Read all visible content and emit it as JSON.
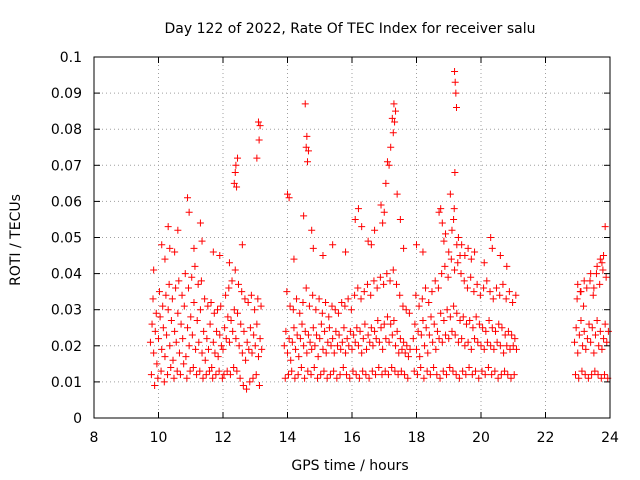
{
  "chart_data": {
    "type": "scatter",
    "title": "Day 122 of 2022, Rate Of TEC Index for receiver salu",
    "xlabel": "GPS time / hours",
    "ylabel": "ROTI / TECUs",
    "xlim": [
      8,
      24
    ],
    "ylim": [
      0,
      0.1
    ],
    "x_ticks": [
      "8",
      "10",
      "12",
      "14",
      "16",
      "18",
      "20",
      "22",
      "24"
    ],
    "y_ticks": [
      "0",
      "0.01",
      "0.02",
      "0.03",
      "0.04",
      "0.05",
      "0.06",
      "0.07",
      "0.08",
      "0.09",
      "0.1"
    ],
    "grid": true,
    "marker": "+",
    "color": "#ff0000",
    "series": [
      {
        "x": [
          9.75,
          9.8,
          9.85,
          9.9,
          9.95,
          10.0,
          10.05,
          10.1,
          10.15,
          10.2,
          10.25,
          10.3,
          10.35,
          10.4,
          10.45,
          10.5,
          10.55,
          10.6,
          10.65,
          10.7,
          10.75,
          10.8,
          10.85,
          10.9,
          10.95,
          11.0,
          11.05,
          11.1,
          11.15,
          11.2,
          11.25,
          11.3,
          11.35,
          11.4,
          11.45,
          11.5,
          11.55,
          11.6,
          11.65,
          11.7,
          11.75,
          11.8,
          11.85,
          11.9,
          11.95,
          12.0,
          12.05,
          12.1,
          12.15,
          12.2,
          12.25,
          12.3,
          12.35,
          12.4,
          12.45,
          12.5,
          12.55,
          12.6,
          12.65,
          12.7,
          12.75,
          12.8,
          12.85,
          12.9,
          12.95,
          13.0,
          13.05,
          13.1,
          13.15,
          13.2,
          9.78,
          9.83,
          9.88,
          9.93,
          9.98,
          10.03,
          10.08,
          10.13,
          10.18,
          10.23,
          10.28,
          10.33,
          10.38,
          10.43,
          10.48,
          10.53,
          10.58,
          10.63,
          10.68,
          10.73,
          10.78,
          10.83,
          10.88,
          10.93,
          10.98,
          11.03,
          11.08,
          11.13,
          11.18,
          11.23,
          11.28,
          11.33,
          11.38,
          11.43,
          11.48,
          11.53,
          11.58,
          11.63,
          11.68,
          11.73,
          11.78,
          11.83,
          11.88,
          11.93,
          11.98,
          12.03,
          12.08,
          12.13,
          12.18,
          12.23,
          12.28,
          12.33,
          12.38,
          12.43,
          12.48,
          12.53,
          12.58,
          12.63,
          12.68,
          12.73,
          12.78,
          12.83,
          12.88,
          12.93,
          12.98,
          13.03,
          13.08,
          13.13,
          13.18,
          10.1,
          10.3,
          10.6,
          10.9,
          10.95,
          11.3,
          11.35,
          11.7,
          12.35,
          12.4,
          12.45,
          12.38,
          12.42,
          13.1,
          13.15,
          13.12,
          13.05,
          10.2,
          10.5,
          11.1,
          11.9,
          12.6,
          12.2,
          9.85,
          10.35,
          13.9,
          13.95,
          14.0,
          14.05,
          14.1,
          14.15,
          14.2,
          14.25,
          14.3,
          14.35,
          14.4,
          14.45,
          14.5,
          14.55,
          14.6,
          14.65,
          14.7,
          14.75,
          14.8,
          14.85,
          14.9,
          14.95,
          15.0,
          15.05,
          15.1,
          15.15,
          15.2,
          15.25,
          15.3,
          15.35,
          15.4,
          15.45,
          15.5,
          15.55,
          15.6,
          15.65,
          15.7,
          15.75,
          15.8,
          15.85,
          15.9,
          15.95,
          16.0,
          16.05,
          16.1,
          16.15,
          16.2,
          16.25,
          16.3,
          16.35,
          16.4,
          16.45,
          16.5,
          16.55,
          16.6,
          16.65,
          16.7,
          16.75,
          16.8,
          16.85,
          16.9,
          16.95,
          17.0,
          17.05,
          17.1,
          17.15,
          17.2,
          17.25,
          17.3,
          17.35,
          17.4,
          17.45,
          17.5,
          17.55,
          17.6,
          17.65,
          17.7,
          17.75,
          17.8,
          13.93,
          13.98,
          14.03,
          14.08,
          14.13,
          14.18,
          14.23,
          14.28,
          14.33,
          14.38,
          14.43,
          14.48,
          14.53,
          14.58,
          14.63,
          14.68,
          14.73,
          14.78,
          14.83,
          14.88,
          14.93,
          14.98,
          15.03,
          15.08,
          15.13,
          15.18,
          15.23,
          15.28,
          15.33,
          15.38,
          15.43,
          15.48,
          15.53,
          15.58,
          15.63,
          15.68,
          15.73,
          15.78,
          15.83,
          15.88,
          15.93,
          15.98,
          16.03,
          16.08,
          16.13,
          16.18,
          16.23,
          16.28,
          16.33,
          16.38,
          16.43,
          16.48,
          16.53,
          16.58,
          16.63,
          16.68,
          16.73,
          16.78,
          16.83,
          16.88,
          16.93,
          16.98,
          17.03,
          17.08,
          17.13,
          17.18,
          17.23,
          17.28,
          17.33,
          17.38,
          17.43,
          17.48,
          17.53,
          17.58,
          17.63,
          17.68,
          17.73,
          17.78,
          14.0,
          14.05,
          14.55,
          14.6,
          14.58,
          14.62,
          14.65,
          14.5,
          14.75,
          14.8,
          15.1,
          15.4,
          16.1,
          16.2,
          16.3,
          16.5,
          16.7,
          16.9,
          17.0,
          17.1,
          17.15,
          17.2,
          17.25,
          17.3,
          17.35,
          17.32,
          17.28,
          17.4,
          17.5,
          17.6,
          17.05,
          16.95,
          14.2,
          15.8,
          16.6,
          17.9,
          17.95,
          18.0,
          18.05,
          18.1,
          18.15,
          18.2,
          18.25,
          18.3,
          18.35,
          18.4,
          18.45,
          18.5,
          18.55,
          18.6,
          18.65,
          18.7,
          18.75,
          18.8,
          18.85,
          18.9,
          18.95,
          19.0,
          19.05,
          19.1,
          19.15,
          19.2,
          19.25,
          19.3,
          19.35,
          19.4,
          19.45,
          19.5,
          19.55,
          19.6,
          19.65,
          19.7,
          19.75,
          19.8,
          19.85,
          19.9,
          19.95,
          20.0,
          20.05,
          20.1,
          20.15,
          20.2,
          20.25,
          20.3,
          20.35,
          20.4,
          20.45,
          20.5,
          20.55,
          20.6,
          20.65,
          20.7,
          20.75,
          20.8,
          20.85,
          20.9,
          20.95,
          21.0,
          21.05,
          21.1,
          17.93,
          17.98,
          18.03,
          18.08,
          18.13,
          18.18,
          18.23,
          18.28,
          18.33,
          18.38,
          18.43,
          18.48,
          18.53,
          18.58,
          18.63,
          18.68,
          18.73,
          18.78,
          18.83,
          18.88,
          18.93,
          18.98,
          19.03,
          19.08,
          19.13,
          19.18,
          19.23,
          19.28,
          19.33,
          19.38,
          19.43,
          19.48,
          19.53,
          19.58,
          19.63,
          19.68,
          19.73,
          19.78,
          19.83,
          19.88,
          19.93,
          19.98,
          20.03,
          20.08,
          20.13,
          20.18,
          20.23,
          20.28,
          20.33,
          20.38,
          20.43,
          20.48,
          20.53,
          20.58,
          20.63,
          20.68,
          20.73,
          20.78,
          20.83,
          20.88,
          20.93,
          20.98,
          21.03,
          21.08,
          19.18,
          19.2,
          19.22,
          19.24,
          19.19,
          19.17,
          19.15,
          19.1,
          19.3,
          19.25,
          18.7,
          18.75,
          18.8,
          18.85,
          18.9,
          19.0,
          19.4,
          19.5,
          19.6,
          19.7,
          19.8,
          20.1,
          20.3,
          20.35,
          20.6,
          20.8,
          18.0,
          18.2,
          19.05,
          19.35,
          22.9,
          22.95,
          23.0,
          23.05,
          23.1,
          23.15,
          23.2,
          23.25,
          23.3,
          23.35,
          23.4,
          23.45,
          23.5,
          23.55,
          23.6,
          23.65,
          23.7,
          23.75,
          23.8,
          23.85,
          23.9,
          23.95,
          22.93,
          22.98,
          23.03,
          23.08,
          23.13,
          23.18,
          23.23,
          23.28,
          23.33,
          23.38,
          23.43,
          23.48,
          23.53,
          23.58,
          23.63,
          23.68,
          23.73,
          23.78,
          23.83,
          23.88,
          23.93,
          23.1,
          23.2,
          23.5,
          23.6,
          23.7,
          23.8,
          23.85,
          23.75,
          23.4,
          23.0
        ],
        "y": [
          0.021,
          0.026,
          0.018,
          0.024,
          0.015,
          0.022,
          0.028,
          0.019,
          0.025,
          0.017,
          0.023,
          0.03,
          0.02,
          0.027,
          0.016,
          0.024,
          0.021,
          0.029,
          0.018,
          0.026,
          0.022,
          0.031,
          0.017,
          0.025,
          0.02,
          0.028,
          0.023,
          0.032,
          0.019,
          0.027,
          0.021,
          0.03,
          0.018,
          0.024,
          0.016,
          0.022,
          0.019,
          0.026,
          0.014,
          0.021,
          0.018,
          0.024,
          0.017,
          0.023,
          0.02,
          0.019,
          0.025,
          0.022,
          0.028,
          0.021,
          0.027,
          0.024,
          0.03,
          0.022,
          0.029,
          0.02,
          0.026,
          0.018,
          0.024,
          0.016,
          0.021,
          0.019,
          0.025,
          0.018,
          0.023,
          0.02,
          0.026,
          0.017,
          0.022,
          0.019,
          0.012,
          0.033,
          0.009,
          0.029,
          0.011,
          0.035,
          0.013,
          0.031,
          0.01,
          0.034,
          0.012,
          0.037,
          0.014,
          0.033,
          0.011,
          0.036,
          0.013,
          0.038,
          0.012,
          0.034,
          0.015,
          0.04,
          0.011,
          0.036,
          0.013,
          0.039,
          0.014,
          0.042,
          0.012,
          0.037,
          0.013,
          0.038,
          0.011,
          0.033,
          0.012,
          0.031,
          0.013,
          0.032,
          0.011,
          0.029,
          0.012,
          0.03,
          0.013,
          0.031,
          0.011,
          0.012,
          0.034,
          0.013,
          0.036,
          0.012,
          0.038,
          0.014,
          0.041,
          0.013,
          0.037,
          0.011,
          0.035,
          0.009,
          0.033,
          0.008,
          0.032,
          0.01,
          0.034,
          0.011,
          0.03,
          0.012,
          0.033,
          0.009,
          0.031,
          0.048,
          0.053,
          0.052,
          0.061,
          0.057,
          0.054,
          0.049,
          0.046,
          0.065,
          0.07,
          0.072,
          0.068,
          0.064,
          0.082,
          0.081,
          0.077,
          0.072,
          0.044,
          0.046,
          0.047,
          0.045,
          0.048,
          0.043,
          0.041,
          0.047,
          0.02,
          0.024,
          0.018,
          0.022,
          0.016,
          0.021,
          0.025,
          0.019,
          0.023,
          0.017,
          0.022,
          0.026,
          0.02,
          0.024,
          0.018,
          0.023,
          0.021,
          0.019,
          0.025,
          0.02,
          0.023,
          0.017,
          0.022,
          0.026,
          0.019,
          0.024,
          0.018,
          0.021,
          0.025,
          0.02,
          0.022,
          0.018,
          0.024,
          0.02,
          0.023,
          0.019,
          0.021,
          0.025,
          0.018,
          0.022,
          0.02,
          0.024,
          0.019,
          0.023,
          0.021,
          0.025,
          0.02,
          0.024,
          0.018,
          0.022,
          0.026,
          0.019,
          0.023,
          0.021,
          0.025,
          0.02,
          0.024,
          0.022,
          0.027,
          0.021,
          0.025,
          0.019,
          0.026,
          0.022,
          0.028,
          0.021,
          0.026,
          0.023,
          0.027,
          0.02,
          0.024,
          0.018,
          0.022,
          0.019,
          0.021,
          0.018,
          0.02,
          0.017,
          0.019,
          0.011,
          0.035,
          0.012,
          0.031,
          0.013,
          0.03,
          0.011,
          0.033,
          0.012,
          0.029,
          0.014,
          0.032,
          0.011,
          0.036,
          0.013,
          0.031,
          0.012,
          0.034,
          0.014,
          0.03,
          0.011,
          0.033,
          0.012,
          0.029,
          0.013,
          0.032,
          0.011,
          0.028,
          0.012,
          0.031,
          0.013,
          0.03,
          0.011,
          0.029,
          0.012,
          0.032,
          0.014,
          0.031,
          0.012,
          0.033,
          0.011,
          0.03,
          0.013,
          0.034,
          0.012,
          0.036,
          0.011,
          0.033,
          0.013,
          0.035,
          0.012,
          0.037,
          0.011,
          0.034,
          0.013,
          0.038,
          0.012,
          0.036,
          0.014,
          0.039,
          0.012,
          0.037,
          0.013,
          0.04,
          0.012,
          0.038,
          0.014,
          0.041,
          0.013,
          0.037,
          0.012,
          0.034,
          0.013,
          0.031,
          0.012,
          0.03,
          0.011,
          0.029,
          0.062,
          0.061,
          0.087,
          0.078,
          0.075,
          0.071,
          0.074,
          0.056,
          0.052,
          0.047,
          0.045,
          0.048,
          0.055,
          0.058,
          0.053,
          0.049,
          0.052,
          0.059,
          0.057,
          0.071,
          0.07,
          0.075,
          0.083,
          0.087,
          0.085,
          0.082,
          0.079,
          0.062,
          0.055,
          0.047,
          0.065,
          0.054,
          0.044,
          0.046,
          0.048,
          0.022,
          0.026,
          0.019,
          0.024,
          0.017,
          0.023,
          0.027,
          0.02,
          0.025,
          0.018,
          0.023,
          0.028,
          0.021,
          0.026,
          0.019,
          0.024,
          0.022,
          0.029,
          0.021,
          0.027,
          0.023,
          0.03,
          0.022,
          0.028,
          0.024,
          0.031,
          0.023,
          0.029,
          0.021,
          0.027,
          0.022,
          0.028,
          0.02,
          0.026,
          0.021,
          0.027,
          0.019,
          0.025,
          0.022,
          0.028,
          0.021,
          0.026,
          0.02,
          0.025,
          0.019,
          0.024,
          0.021,
          0.027,
          0.02,
          0.025,
          0.019,
          0.024,
          0.021,
          0.026,
          0.02,
          0.025,
          0.018,
          0.023,
          0.02,
          0.024,
          0.019,
          0.023,
          0.02,
          0.022,
          0.019,
          0.013,
          0.034,
          0.012,
          0.031,
          0.014,
          0.033,
          0.011,
          0.036,
          0.013,
          0.032,
          0.012,
          0.035,
          0.014,
          0.038,
          0.012,
          0.036,
          0.011,
          0.04,
          0.013,
          0.042,
          0.012,
          0.039,
          0.014,
          0.044,
          0.013,
          0.041,
          0.012,
          0.043,
          0.011,
          0.04,
          0.013,
          0.038,
          0.012,
          0.036,
          0.014,
          0.039,
          0.012,
          0.035,
          0.013,
          0.037,
          0.011,
          0.034,
          0.013,
          0.036,
          0.012,
          0.038,
          0.014,
          0.035,
          0.012,
          0.033,
          0.013,
          0.036,
          0.011,
          0.034,
          0.012,
          0.037,
          0.013,
          0.033,
          0.012,
          0.035,
          0.011,
          0.032,
          0.012,
          0.034,
          0.096,
          0.093,
          0.09,
          0.086,
          0.068,
          0.058,
          0.055,
          0.052,
          0.05,
          0.048,
          0.057,
          0.058,
          0.054,
          0.049,
          0.051,
          0.046,
          0.048,
          0.045,
          0.047,
          0.044,
          0.046,
          0.043,
          0.05,
          0.047,
          0.045,
          0.042,
          0.048,
          0.046,
          0.062,
          0.045,
          0.021,
          0.025,
          0.018,
          0.023,
          0.027,
          0.02,
          0.024,
          0.019,
          0.022,
          0.026,
          0.021,
          0.025,
          0.018,
          0.023,
          0.027,
          0.02,
          0.024,
          0.019,
          0.022,
          0.026,
          0.021,
          0.024,
          0.012,
          0.033,
          0.011,
          0.035,
          0.013,
          0.031,
          0.012,
          0.036,
          0.011,
          0.038,
          0.012,
          0.034,
          0.013,
          0.04,
          0.012,
          0.037,
          0.011,
          0.041,
          0.012,
          0.039,
          0.011,
          0.035,
          0.038,
          0.036,
          0.042,
          0.044,
          0.045,
          0.053,
          0.043,
          0.04,
          0.037
        ]
      }
    ]
  }
}
